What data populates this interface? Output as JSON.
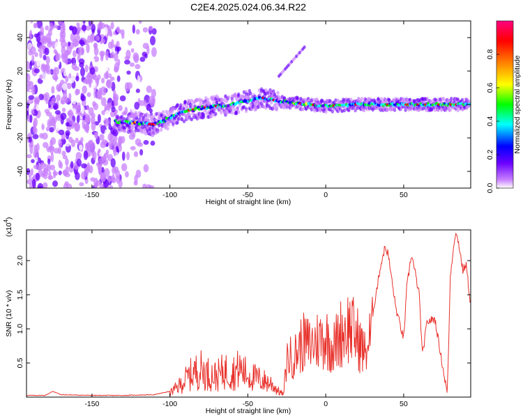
{
  "title": "C2E4.2025.024.06.34.R22",
  "chart_data": [
    {
      "type": "heatmap",
      "xlabel": "Height of straight line (km)",
      "ylabel": "Frequency (Hz)",
      "xlim": [
        -192,
        93
      ],
      "ylim": [
        -50,
        50
      ],
      "xticks": [
        -150,
        -100,
        -50,
        0,
        50
      ],
      "yticks": [
        -40,
        -20,
        0,
        20,
        40
      ],
      "colorbar": {
        "label": "Normalized spectral amplitude",
        "range": [
          0,
          1
        ],
        "ticks": [
          "0.0",
          "0.2",
          "0.4",
          "0.6",
          "0.8"
        ],
        "colors": [
          "#ffffff",
          "#c880ff",
          "#6a00ff",
          "#0000ff",
          "#00ffff",
          "#00ff00",
          "#ffff00",
          "#ff8000",
          "#ff0000",
          "#ff0080"
        ]
      },
      "ridge": {
        "name": "",
        "x": [
          -135,
          -120,
          -110,
          -100,
          -90,
          -80,
          -70,
          -60,
          -50,
          -40,
          -30,
          -20,
          -10,
          0,
          20,
          40,
          60,
          80,
          93
        ],
        "y": [
          -10,
          -11,
          -12,
          -8,
          -4,
          -2,
          -1,
          0,
          2,
          4,
          2,
          1,
          0,
          -1,
          0,
          0,
          0,
          0,
          0
        ]
      },
      "noise_region_x": [
        -192,
        -110
      ],
      "streak": {
        "x": [
          -30,
          -13
        ],
        "y": [
          17,
          35
        ]
      }
    },
    {
      "type": "line",
      "xlabel": "Height of straight line (km)",
      "ylabel": "SNR (10 * v/v)",
      "yunit_label": "(x10",
      "yunit_exp": "4",
      "xlim": [
        -192,
        93
      ],
      "ylim": [
        0,
        2.45
      ],
      "xticks": [
        -150,
        -100,
        -50,
        0,
        50
      ],
      "yticks": [
        0.5,
        1.0,
        1.5,
        2.0
      ],
      "ytick_labels": [
        "0.5",
        "1.0",
        "1.5",
        "2.0"
      ],
      "color": "#e8302a",
      "x": [
        -192,
        -180,
        -175,
        -170,
        -150,
        -130,
        -110,
        -100,
        -95,
        -90,
        -85,
        -80,
        -75,
        -70,
        -65,
        -60,
        -55,
        -50,
        -45,
        -40,
        -35,
        -30,
        -27,
        -25,
        -20,
        -15,
        -10,
        -5,
        0,
        5,
        10,
        15,
        20,
        25,
        30,
        35,
        38,
        40,
        45,
        50,
        52,
        55,
        60,
        62,
        65,
        70,
        75,
        78,
        80,
        83,
        85,
        88,
        90,
        93
      ],
      "y": [
        0.02,
        0.02,
        0.08,
        0.03,
        0.02,
        0.02,
        0.03,
        0.08,
        0.18,
        0.32,
        0.45,
        0.5,
        0.42,
        0.38,
        0.48,
        0.45,
        0.52,
        0.4,
        0.35,
        0.3,
        0.25,
        0.1,
        0.05,
        0.7,
        0.75,
        1.0,
        0.95,
        1.05,
        1.1,
        0.9,
        1.2,
        1.3,
        1.1,
        0.8,
        1.2,
        1.9,
        2.2,
        2.1,
        1.3,
        0.85,
        1.6,
        2.1,
        1.5,
        0.6,
        1.1,
        1.15,
        0.45,
        0.05,
        1.8,
        2.4,
        2.3,
        1.85,
        1.95,
        1.35
      ],
      "peak_labels": []
    }
  ]
}
